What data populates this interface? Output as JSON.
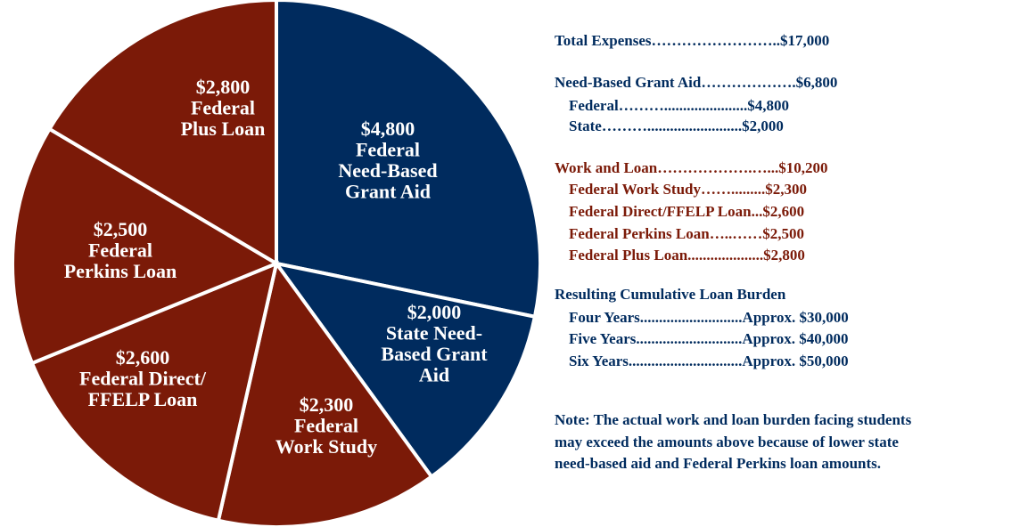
{
  "chart_data": {
    "type": "pie",
    "categories": [
      [
        "Federal",
        "Need-Based",
        "Grant Aid"
      ],
      [
        "State Need-",
        "Based Grant",
        "Aid"
      ],
      [
        "Federal",
        "Work Study"
      ],
      [
        "Federal Direct/",
        "FFELP Loan"
      ],
      [
        "Federal",
        "Perkins Loan"
      ],
      [
        "Federal",
        "Plus Loan"
      ]
    ],
    "values": [
      4800,
      2000,
      2300,
      2600,
      2500,
      2800
    ],
    "value_labels": [
      "$4,800",
      "$2,000",
      "$2,300",
      "$2,600",
      "$2,500",
      "$2,800"
    ],
    "colors": [
      "#002b5e",
      "#002b5e",
      "#7b1a08",
      "#7b1a08",
      "#7b1a08",
      "#7b1a08"
    ]
  },
  "panel": {
    "sections": [
      {
        "color": "#002b5e",
        "lines": [
          "Total Expenses……………………..$17,000"
        ]
      },
      {
        "color": "#002b5e",
        "lines": [
          "Need-Based Grant Aid……………….$6,800",
          "Federal………......................$4,800",
          "State……….........................$2,000"
        ]
      },
      {
        "color": "#7b1a08",
        "lines": [
          "Work and Loan……………….…...$10,200",
          "Federal Work Study…….........$2,300",
          "Federal Direct/FFELP Loan...$2,600",
          "Federal Perkins Loan…..……$2,500",
          "Federal Plus Loan....................$2,800"
        ]
      },
      {
        "color": "#002b5e",
        "lines": [
          "Resulting Cumulative Loan Burden",
          "Four Years...........................Approx. $30,000",
          "Five Years............................Approx. $40,000",
          "Six Years..............................Approx. $50,000"
        ]
      },
      {
        "color": "#002b5e",
        "lines": [
          "Note: The actual work and loan burden facing students",
          "may exceed the amounts above because of lower state",
          "need-based aid and Federal Perkins loan amounts."
        ]
      }
    ]
  }
}
